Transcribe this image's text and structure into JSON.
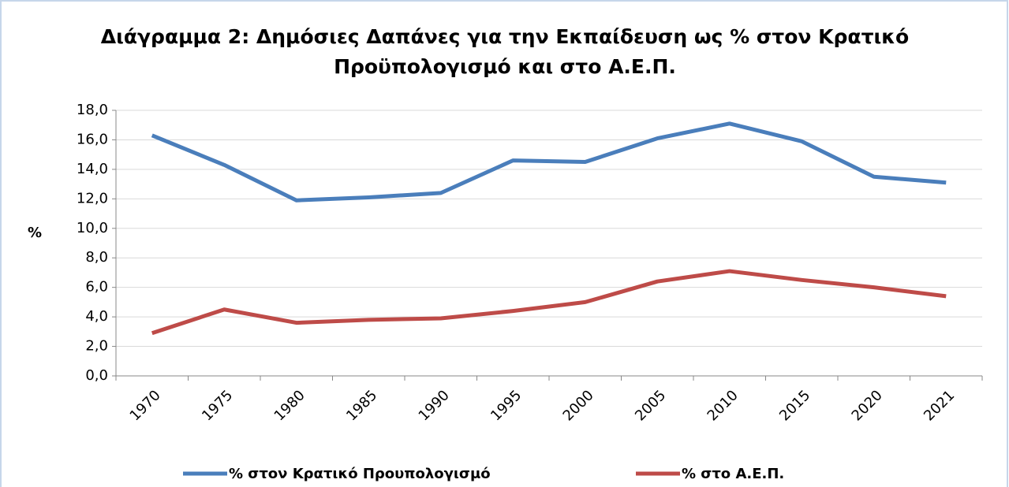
{
  "chart_data": {
    "type": "line",
    "title": "Διάγραμμα 2: Δημόσιες Δαπάνες για την Εκπαίδευση ως % στον Κρατικό Προϋπολογισμό και στο Α.Ε.Π.",
    "y_label": "%",
    "categories": [
      "1970",
      "1975",
      "1980",
      "1985",
      "1990",
      "1995",
      "2000",
      "2005",
      "2010",
      "2015",
      "2020",
      "2021"
    ],
    "series": [
      {
        "name": "% στον Κρατικό Προυπολογισμό",
        "color": "#4a7ebb",
        "values": [
          16.3,
          14.3,
          11.9,
          12.1,
          12.4,
          14.6,
          14.5,
          16.1,
          17.1,
          15.9,
          13.5,
          13.1
        ]
      },
      {
        "name": "% στο Α.Ε.Π.",
        "color": "#be4b48",
        "values": [
          2.9,
          4.5,
          3.6,
          3.8,
          3.9,
          4.4,
          5.0,
          6.4,
          7.1,
          6.5,
          6.0,
          5.4
        ]
      }
    ],
    "ylim": [
      0,
      18
    ],
    "yticks": [
      {
        "value": 0,
        "label": "0,0"
      },
      {
        "value": 2,
        "label": "2,0"
      },
      {
        "value": 4,
        "label": "4,0"
      },
      {
        "value": 6,
        "label": "6,0"
      },
      {
        "value": 8,
        "label": "8,0"
      },
      {
        "value": 10,
        "label": "10,0"
      },
      {
        "value": 12,
        "label": "12,0"
      },
      {
        "value": 14,
        "label": "14,0"
      },
      {
        "value": 16,
        "label": "16,0"
      },
      {
        "value": 18,
        "label": "18,0"
      }
    ],
    "grid": true,
    "legend": "bottom"
  }
}
